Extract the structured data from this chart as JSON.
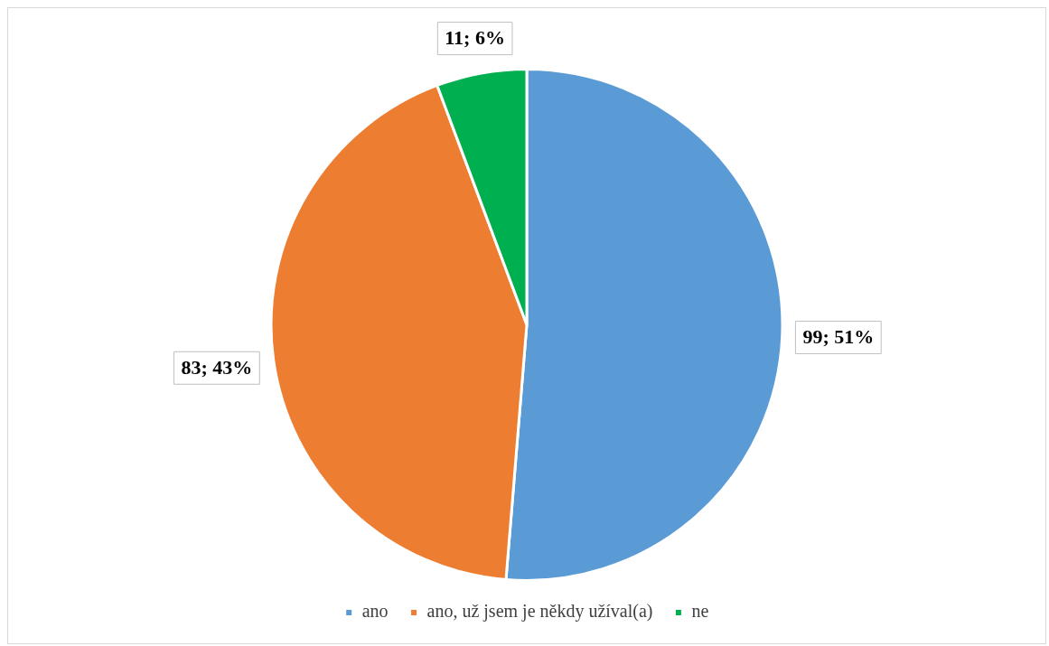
{
  "chart_data": {
    "type": "pie",
    "categories": [
      "ano",
      "ano, už jsem je někdy užíval(a)",
      "ne"
    ],
    "values": [
      99,
      83,
      11
    ],
    "colors": [
      "#5b9bd5",
      "#ed7d31",
      "#00b050"
    ],
    "value_labels": [
      "99; 51%",
      "83; 43%",
      "11; 6%"
    ],
    "legend": "bottom"
  }
}
